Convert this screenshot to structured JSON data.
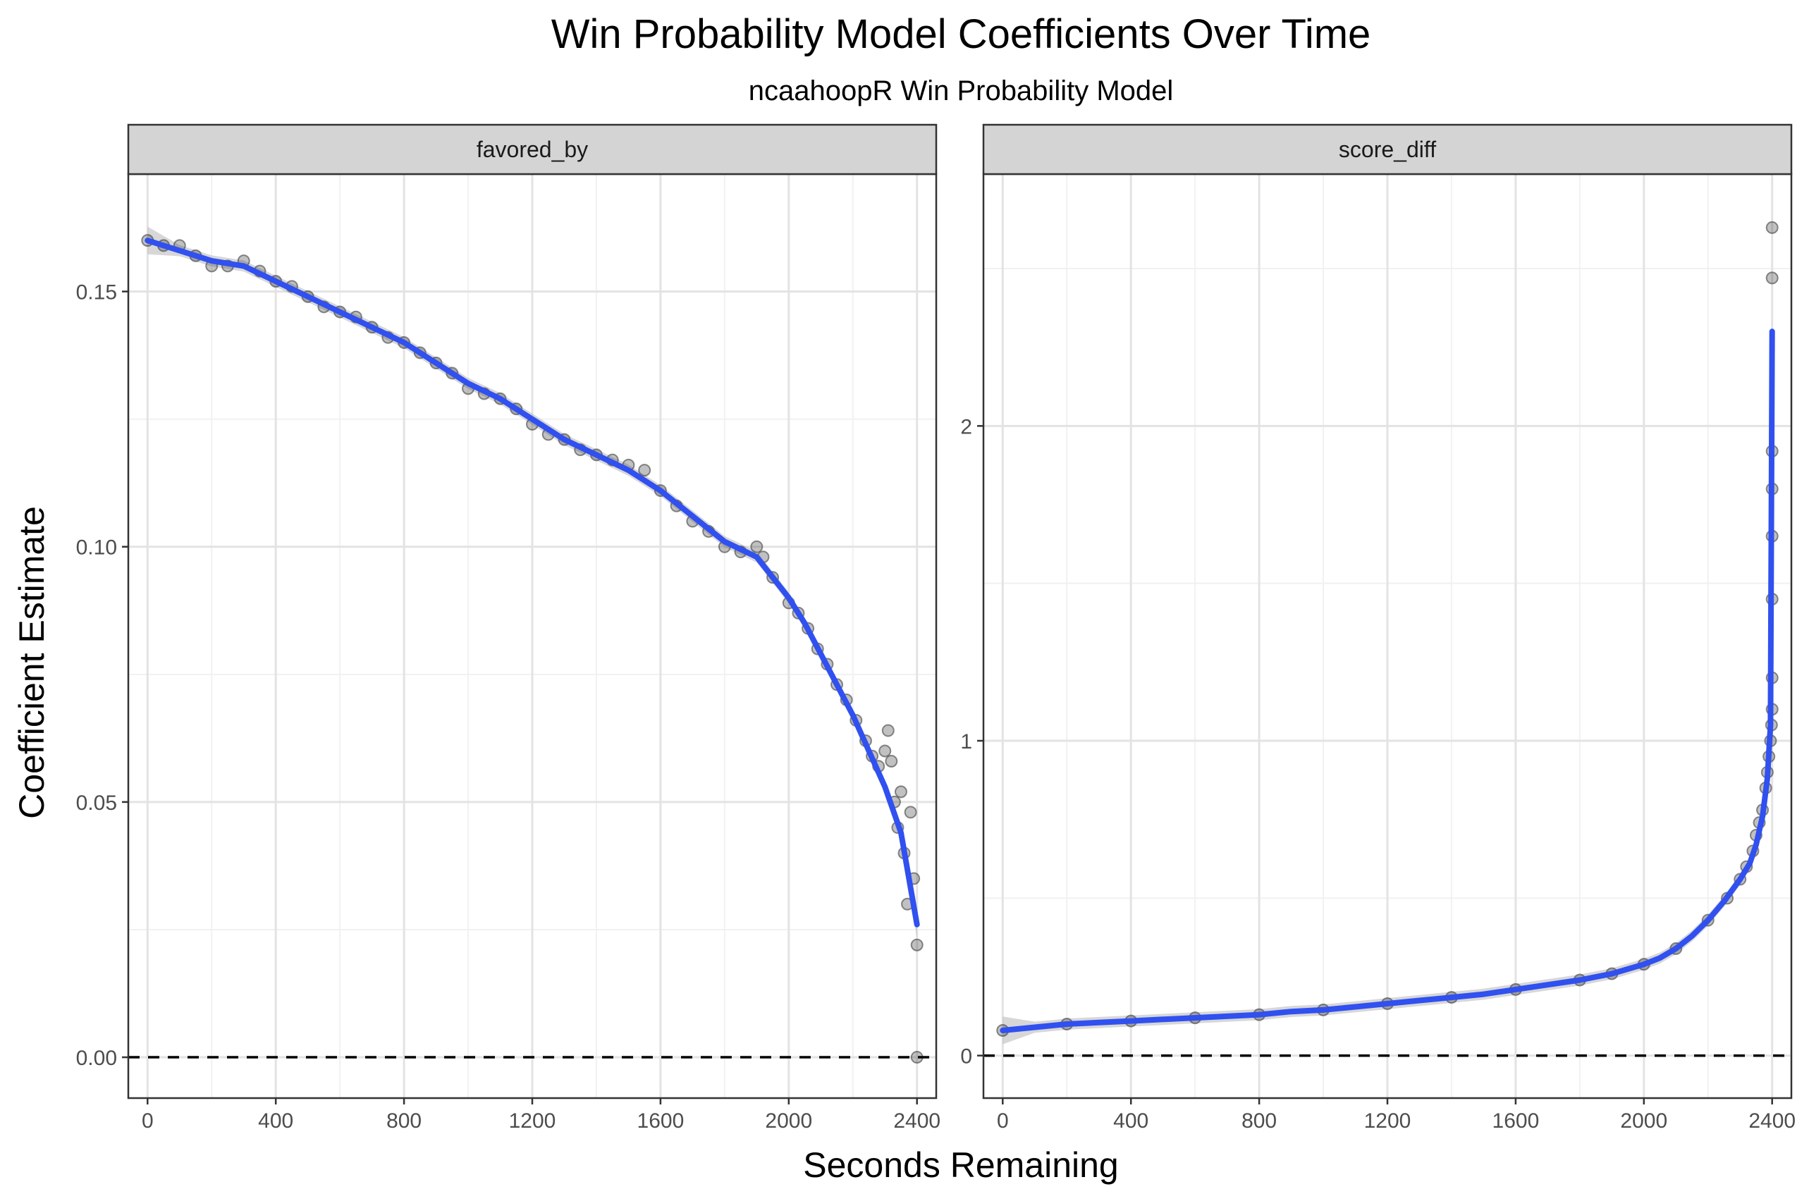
{
  "chart_data": {
    "type": "scatter",
    "title": "Win Probability Model Coefficients Over Time",
    "subtitle": "ncaahoopR Win Probability Model",
    "xlabel": "Seconds Remaining",
    "ylabel": "Coefficient Estimate",
    "grid": true,
    "legend": "none",
    "colors": {
      "smooth": "#3050f0",
      "points": "#333333",
      "ribbon": "#bdbdbd",
      "strip_bg": "#d4d4d4",
      "zero_line": "#000000"
    },
    "reference_line": {
      "y": 0,
      "style": "dashed"
    },
    "panels": [
      {
        "label": "favored_by",
        "xlim": [
          -60,
          2460
        ],
        "ylim": [
          -0.008,
          0.173
        ],
        "x_ticks": [
          0,
          400,
          800,
          1200,
          1600,
          2000,
          2400
        ],
        "x_tick_labels": [
          "0",
          "400",
          "800",
          "1200",
          "1600",
          "2000",
          "2400"
        ],
        "y_ticks": [
          0,
          0.05,
          0.1,
          0.15
        ],
        "y_tick_labels": [
          "0.00",
          "0.05",
          "0.10",
          "0.15"
        ],
        "smooth": {
          "x": [
            0,
            100,
            200,
            300,
            400,
            500,
            600,
            700,
            800,
            900,
            1000,
            1100,
            1200,
            1300,
            1400,
            1500,
            1600,
            1700,
            1800,
            1900,
            1950,
            2000,
            2050,
            2100,
            2150,
            2200,
            2250,
            2300,
            2350,
            2400
          ],
          "y": [
            0.16,
            0.158,
            0.156,
            0.155,
            0.152,
            0.149,
            0.146,
            0.143,
            0.14,
            0.136,
            0.132,
            0.129,
            0.125,
            0.121,
            0.118,
            0.115,
            0.111,
            0.106,
            0.101,
            0.098,
            0.094,
            0.09,
            0.085,
            0.079,
            0.073,
            0.067,
            0.06,
            0.053,
            0.044,
            0.026
          ]
        },
        "points": {
          "x": [
            0,
            50,
            100,
            150,
            200,
            250,
            300,
            350,
            400,
            450,
            500,
            550,
            600,
            650,
            700,
            750,
            800,
            850,
            900,
            950,
            1000,
            1050,
            1100,
            1150,
            1200,
            1250,
            1300,
            1350,
            1400,
            1450,
            1500,
            1550,
            1600,
            1650,
            1700,
            1750,
            1800,
            1850,
            1900,
            1920,
            1950,
            2000,
            2030,
            2060,
            2090,
            2120,
            2150,
            2180,
            2210,
            2240,
            2260,
            2280,
            2300,
            2310,
            2320,
            2330,
            2340,
            2350,
            2360,
            2370,
            2380,
            2390,
            2400,
            2400
          ],
          "y": [
            0.16,
            0.159,
            0.159,
            0.157,
            0.155,
            0.155,
            0.156,
            0.154,
            0.152,
            0.151,
            0.149,
            0.147,
            0.146,
            0.145,
            0.143,
            0.141,
            0.14,
            0.138,
            0.136,
            0.134,
            0.131,
            0.13,
            0.129,
            0.127,
            0.124,
            0.122,
            0.121,
            0.119,
            0.118,
            0.117,
            0.116,
            0.115,
            0.111,
            0.108,
            0.105,
            0.103,
            0.1,
            0.099,
            0.1,
            0.098,
            0.094,
            0.089,
            0.087,
            0.084,
            0.08,
            0.077,
            0.073,
            0.07,
            0.066,
            0.062,
            0.059,
            0.057,
            0.06,
            0.064,
            0.058,
            0.05,
            0.045,
            0.052,
            0.04,
            0.03,
            0.048,
            0.035,
            0.022,
            0.0
          ]
        }
      },
      {
        "label": "score_diff",
        "xlim": [
          -60,
          2460
        ],
        "ylim": [
          -0.135,
          2.8
        ],
        "x_ticks": [
          0,
          400,
          800,
          1200,
          1600,
          2000,
          2400
        ],
        "x_tick_labels": [
          "0",
          "400",
          "800",
          "1200",
          "1600",
          "2000",
          "2400"
        ],
        "y_ticks": [
          0,
          1,
          2
        ],
        "y_tick_labels": [
          "0",
          "1",
          "2"
        ],
        "smooth": {
          "x": [
            0,
            100,
            200,
            300,
            400,
            500,
            600,
            700,
            800,
            900,
            1000,
            1100,
            1200,
            1300,
            1400,
            1500,
            1600,
            1700,
            1800,
            1900,
            2000,
            2050,
            2100,
            2150,
            2200,
            2250,
            2300,
            2330,
            2350,
            2370,
            2385,
            2395,
            2400
          ],
          "y": [
            0.08,
            0.09,
            0.1,
            0.105,
            0.11,
            0.115,
            0.12,
            0.125,
            0.13,
            0.14,
            0.145,
            0.155,
            0.165,
            0.175,
            0.185,
            0.195,
            0.21,
            0.225,
            0.24,
            0.26,
            0.29,
            0.31,
            0.34,
            0.38,
            0.43,
            0.49,
            0.56,
            0.61,
            0.67,
            0.76,
            0.88,
            1.05,
            2.3
          ]
        },
        "points": {
          "x": [
            0,
            200,
            400,
            600,
            800,
            1000,
            1200,
            1400,
            1600,
            1800,
            1900,
            2000,
            2100,
            2200,
            2260,
            2300,
            2320,
            2340,
            2350,
            2360,
            2370,
            2380,
            2385,
            2390,
            2395,
            2398,
            2400,
            2400,
            2400,
            2400,
            2400,
            2400,
            2400,
            2400
          ],
          "y": [
            0.08,
            0.1,
            0.11,
            0.12,
            0.13,
            0.145,
            0.165,
            0.185,
            0.21,
            0.24,
            0.26,
            0.29,
            0.34,
            0.43,
            0.5,
            0.56,
            0.6,
            0.65,
            0.7,
            0.74,
            0.78,
            0.85,
            0.9,
            0.95,
            1.0,
            1.05,
            1.1,
            1.2,
            1.45,
            1.65,
            1.8,
            1.92,
            2.47,
            2.63
          ]
        }
      }
    ]
  }
}
